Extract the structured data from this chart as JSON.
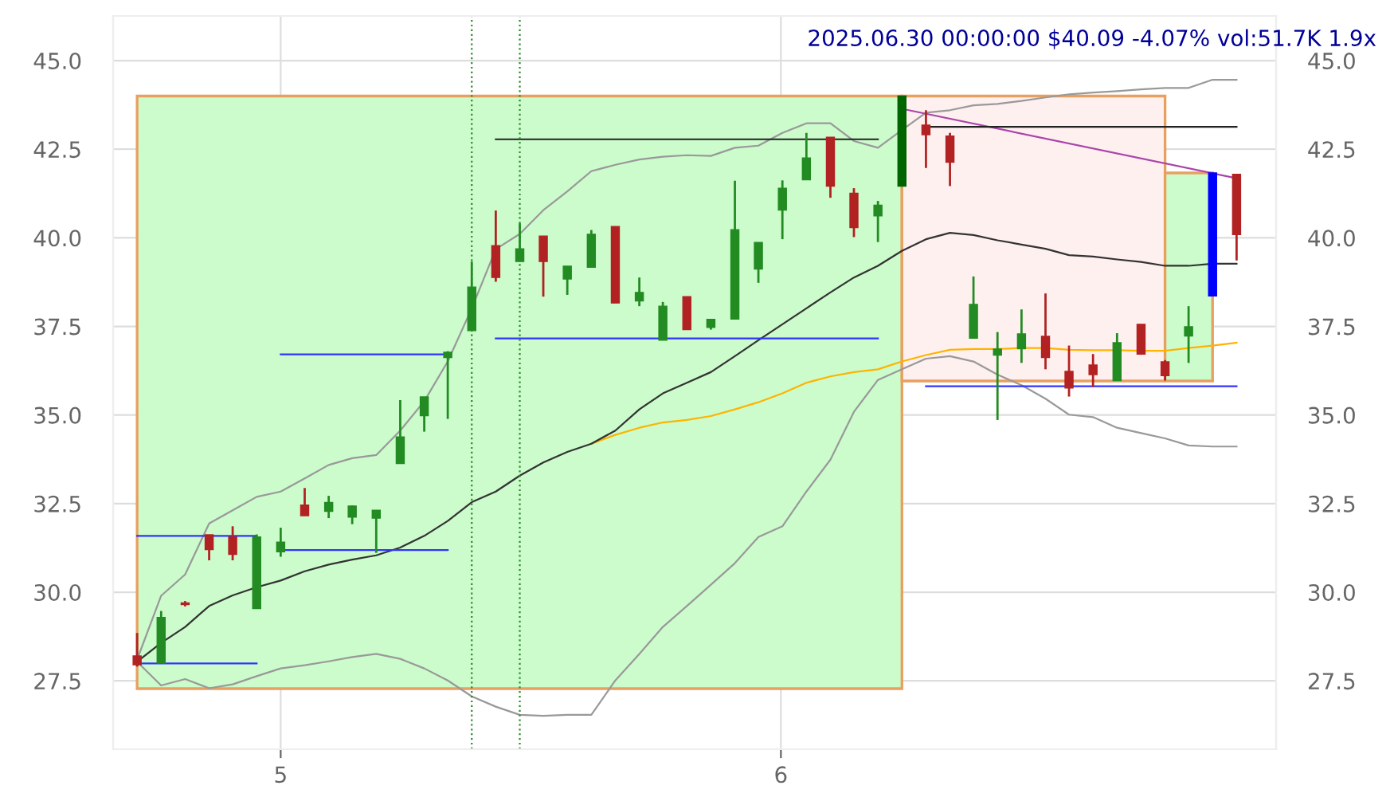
{
  "chart_data": {
    "type": "candlestick",
    "title": "2025.06.30 00:00:00 $40.09 -4.07% vol:51.7K 1.9x",
    "x": [
      4.713,
      4.761,
      4.809,
      4.857,
      4.904,
      4.952,
      5.0,
      5.048,
      5.096,
      5.143,
      5.191,
      5.239,
      5.287,
      5.334,
      5.382,
      5.43,
      5.478,
      5.525,
      5.573,
      5.621,
      5.669,
      5.717,
      5.764,
      5.812,
      5.86,
      5.908,
      5.955,
      6.003,
      6.051,
      6.099,
      6.146,
      6.194,
      6.242,
      6.29,
      6.338,
      6.385,
      6.433,
      6.481,
      6.529,
      6.576,
      6.624,
      6.672,
      6.72,
      6.768,
      6.815,
      6.863,
      6.911
    ],
    "ohlc": [
      [
        28.2,
        28.85,
        27.9,
        27.95
      ],
      [
        28.0,
        29.47,
        28.0,
        29.29
      ],
      [
        29.7,
        29.75,
        29.6,
        29.65
      ],
      [
        31.62,
        31.62,
        30.9,
        31.2
      ],
      [
        31.56,
        31.86,
        30.9,
        31.07
      ],
      [
        29.54,
        31.63,
        29.54,
        31.56
      ],
      [
        31.14,
        31.82,
        31.0,
        31.41
      ],
      [
        32.46,
        32.94,
        32.16,
        32.16
      ],
      [
        32.28,
        32.72,
        32.09,
        32.53
      ],
      [
        32.12,
        32.45,
        31.92,
        32.43
      ],
      [
        32.09,
        32.31,
        31.11,
        32.31
      ],
      [
        33.63,
        35.42,
        33.63,
        34.38
      ],
      [
        34.98,
        35.51,
        34.53,
        35.51
      ],
      [
        36.62,
        36.8,
        34.89,
        36.77
      ],
      [
        37.38,
        39.33,
        37.38,
        38.61
      ],
      [
        39.78,
        40.77,
        38.76,
        38.88
      ],
      [
        39.33,
        40.41,
        39.33,
        39.69
      ],
      [
        40.05,
        40.05,
        38.34,
        39.33
      ],
      [
        38.84,
        39.2,
        38.39,
        39.2
      ],
      [
        39.17,
        40.22,
        39.17,
        40.1
      ],
      [
        40.32,
        40.32,
        38.16,
        38.16
      ],
      [
        38.22,
        38.88,
        38.07,
        38.46
      ],
      [
        37.11,
        38.19,
        37.11,
        38.07
      ],
      [
        38.34,
        38.34,
        37.41,
        37.41
      ],
      [
        37.47,
        37.7,
        37.41,
        37.7
      ],
      [
        37.71,
        41.61,
        37.71,
        40.23
      ],
      [
        39.12,
        39.87,
        38.73,
        39.87
      ],
      [
        40.78,
        41.62,
        39.96,
        41.4
      ],
      [
        41.64,
        42.96,
        41.64,
        42.25
      ],
      [
        42.84,
        42.84,
        41.13,
        41.46
      ],
      [
        41.26,
        41.4,
        40.02,
        40.29
      ],
      [
        40.62,
        41.04,
        39.88,
        40.92
      ],
      [
        41.46,
        44.0,
        41.46,
        44.0
      ],
      [
        43.18,
        43.6,
        41.97,
        42.91
      ],
      [
        42.87,
        42.96,
        41.46,
        42.13
      ],
      [
        37.17,
        38.91,
        37.17,
        38.12
      ],
      [
        36.69,
        37.34,
        34.86,
        36.86
      ],
      [
        36.87,
        37.98,
        36.47,
        37.29
      ],
      [
        37.22,
        38.43,
        36.29,
        36.62
      ],
      [
        36.23,
        36.96,
        35.52,
        35.76
      ],
      [
        36.41,
        36.72,
        35.79,
        36.14
      ],
      [
        35.97,
        37.31,
        35.97,
        37.04
      ],
      [
        37.56,
        37.56,
        36.7,
        36.72
      ],
      [
        36.5,
        36.55,
        35.97,
        36.11
      ],
      [
        37.23,
        38.07,
        36.47,
        37.49
      ],
      [
        38.36,
        41.83,
        38.36,
        41.83
      ],
      [
        41.79,
        41.79,
        39.36,
        40.09
      ]
    ],
    "colors": [
      "#b22222",
      "#228b22",
      "#b22222",
      "#b22222",
      "#b22222",
      "#228b22",
      "#228b22",
      "#b22222",
      "#228b22",
      "#228b22",
      "#228b22",
      "#228b22",
      "#228b22",
      "#228b22",
      "#228b22",
      "#b22222",
      "#228b22",
      "#b22222",
      "#228b22",
      "#228b22",
      "#b22222",
      "#228b22",
      "#228b22",
      "#b22222",
      "#228b22",
      "#228b22",
      "#228b22",
      "#228b22",
      "#228b22",
      "#b22222",
      "#b22222",
      "#228b22",
      "#006400",
      "#b22222",
      "#b22222",
      "#228b22",
      "#228b22",
      "#228b22",
      "#b22222",
      "#b22222",
      "#b22222",
      "#228b22",
      "#b22222",
      "#b22222",
      "#228b22",
      "#0000ff",
      "#b22222"
    ],
    "series": [
      {
        "type": "area",
        "color": "#ccfccc",
        "x": [
          4.713,
          4.713,
          6.242,
          6.242
        ],
        "values": [
          27.28,
          44.0,
          44.0,
          27.28
        ]
      },
      {
        "type": "area",
        "color": "#fff0f0",
        "x": [
          6.242,
          6.242,
          6.768,
          6.768
        ],
        "values": [
          35.96,
          44.0,
          44.0,
          35.96
        ]
      },
      {
        "type": "area",
        "color": "#ccfccc",
        "x": [
          6.768,
          6.768,
          6.863,
          6.863
        ],
        "values": [
          35.96,
          41.83,
          41.83,
          35.96
        ]
      },
      {
        "type": "line",
        "color": "#999999",
        "values": [
          28.1,
          29.9,
          30.5,
          31.94,
          32.31,
          32.69,
          32.84,
          33.21,
          33.59,
          33.78,
          33.87,
          34.56,
          35.39,
          36.51,
          38.01,
          39.68,
          40.11,
          40.78,
          41.31,
          41.88,
          42.06,
          42.21,
          42.29,
          42.33,
          42.31,
          42.54,
          42.6,
          42.96,
          43.23,
          43.23,
          42.73,
          42.54,
          43.04,
          43.53,
          43.6,
          43.74,
          43.78,
          43.86,
          43.96,
          44.05,
          44.1,
          44.14,
          44.19,
          44.23,
          44.23,
          44.46,
          44.46
        ]
      },
      {
        "type": "line",
        "color": "#999999",
        "values": [
          28.04,
          27.37,
          27.55,
          27.29,
          27.4,
          27.63,
          27.85,
          27.94,
          28.05,
          28.17,
          28.26,
          28.12,
          27.85,
          27.51,
          27.06,
          26.77,
          26.54,
          26.51,
          26.54,
          26.54,
          27.51,
          28.26,
          29.02,
          29.61,
          30.21,
          30.82,
          31.56,
          31.86,
          32.84,
          33.74,
          35.09,
          35.99,
          36.29,
          36.59,
          36.66,
          36.51,
          36.14,
          35.84,
          35.46,
          35.01,
          34.94,
          34.64,
          34.49,
          34.34,
          34.14,
          34.11,
          34.11
        ]
      },
      {
        "type": "line",
        "color": "#ffb300",
        "values": [
          null,
          null,
          null,
          null,
          null,
          null,
          null,
          null,
          null,
          null,
          null,
          null,
          null,
          null,
          null,
          null,
          null,
          null,
          null,
          34.19,
          34.44,
          34.64,
          34.79,
          34.86,
          34.97,
          35.16,
          35.36,
          35.61,
          35.91,
          36.09,
          36.21,
          36.29,
          36.51,
          36.69,
          36.84,
          36.86,
          36.86,
          36.89,
          36.89,
          36.84,
          36.83,
          36.83,
          36.81,
          36.81,
          36.89,
          36.96,
          37.04
        ]
      },
      {
        "type": "line",
        "color": "#333333",
        "values": [
          28.04,
          28.57,
          29.02,
          29.61,
          29.91,
          30.14,
          30.33,
          30.59,
          30.78,
          30.92,
          31.04,
          31.26,
          31.59,
          32.01,
          32.54,
          32.84,
          33.29,
          33.66,
          33.96,
          34.19,
          34.56,
          35.16,
          35.61,
          35.91,
          36.21,
          36.66,
          37.11,
          37.56,
          38.01,
          38.46,
          38.88,
          39.21,
          39.63,
          39.96,
          40.14,
          40.08,
          39.93,
          39.81,
          39.69,
          39.51,
          39.47,
          39.39,
          39.32,
          39.21,
          39.21,
          39.27,
          39.27
        ]
      },
      {
        "type": "line",
        "color": "#aa44aa",
        "x": [
          6.242,
          6.911
        ],
        "values": [
          43.64,
          41.68
        ]
      },
      {
        "type": "line",
        "color": "#3333ff",
        "x": [
          4.713,
          4.952
        ],
        "values": [
          31.59,
          31.59
        ]
      },
      {
        "type": "line",
        "color": "#3333ff",
        "x": [
          4.713,
          4.952
        ],
        "values": [
          27.99,
          27.99
        ]
      },
      {
        "type": "line",
        "color": "#3333ff",
        "x": [
          5.0,
          5.334
        ],
        "values": [
          36.71,
          36.71
        ]
      },
      {
        "type": "line",
        "color": "#3333ff",
        "x": [
          5.0,
          5.334
        ],
        "values": [
          31.19,
          31.19
        ]
      },
      {
        "type": "line",
        "color": "#222222",
        "x": [
          5.43,
          6.194
        ],
        "values": [
          42.78,
          42.78
        ]
      },
      {
        "type": "line",
        "color": "#3333ff",
        "x": [
          5.43,
          6.194
        ],
        "values": [
          37.16,
          37.16
        ]
      },
      {
        "type": "line",
        "color": "#222222",
        "x": [
          6.29,
          6.911
        ],
        "values": [
          43.13,
          43.13
        ]
      },
      {
        "type": "line",
        "color": "#3333ff",
        "x": [
          6.29,
          6.911
        ],
        "values": [
          35.81,
          35.81
        ]
      }
    ],
    "ref_lines": [
      {
        "axis": "x",
        "value": 5.382,
        "color": "#2e8b2e",
        "line_style": "dotted"
      },
      {
        "axis": "x",
        "value": 5.478,
        "color": "#2e8b2e",
        "line_style": "dotted"
      }
    ],
    "xlim": [
      4.665,
      6.99
    ],
    "xticks": [
      5,
      6
    ],
    "ylim": [
      25.57,
      46.26
    ],
    "yticks": [
      27.5,
      {
        "value": 30,
        "label": "30.0"
      },
      32.5,
      {
        "value": 35,
        "label": "35.0"
      },
      37.5,
      {
        "value": 40,
        "label": "40.0"
      },
      42.5,
      {
        "value": 45,
        "label": "45.0"
      }
    ],
    "y2lim": [
      25.57,
      46.26
    ],
    "y2ticks": [
      27.5,
      {
        "value": 30,
        "label": "30.0"
      },
      32.5,
      {
        "value": 35,
        "label": "35.0"
      },
      37.5,
      {
        "value": 40,
        "label": "40.0"
      },
      42.5,
      {
        "value": 45,
        "label": "45.0"
      }
    ],
    "grid": true,
    "legend": false
  }
}
